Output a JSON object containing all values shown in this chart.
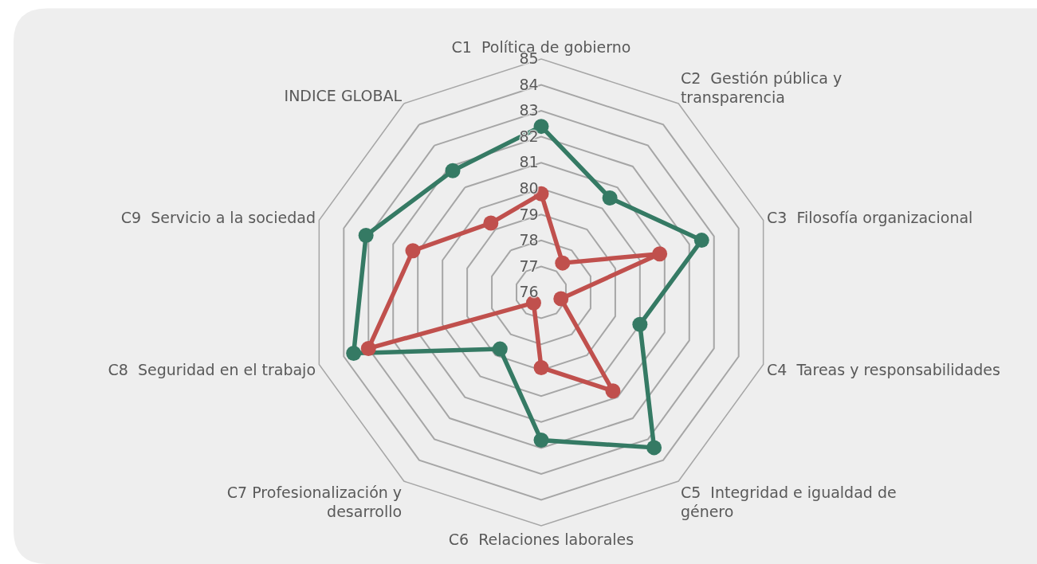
{
  "chart_data": {
    "type": "radar",
    "categories": [
      "C1  Política de gobierno",
      "C2  Gestión pública y transparencia",
      "C3  Filosofía organizacional",
      "C4  Tareas y responsabilidades",
      "C5  Integridad e igualdad de género",
      "C6  Relaciones laborales",
      "C7 Profesionalización y desarrollo",
      "C8  Seguridad en el trabajo",
      "C9  Servicio a la sociedad",
      "INDICE GLOBAL"
    ],
    "ylim": [
      76,
      85
    ],
    "yticks": [
      76,
      77,
      78,
      79,
      80,
      81,
      82,
      83,
      84,
      85
    ],
    "grid": true,
    "marker": "circle",
    "line_style": "solid",
    "series": [
      {
        "color": "#357a64",
        "values": [
          82.4,
          80.5,
          82.5,
          80.0,
          83.4,
          81.7,
          78.7,
          83.6,
          83.1,
          81.8
        ]
      },
      {
        "color": "#c0504d",
        "values": [
          79.8,
          77.4,
          80.8,
          76.8,
          80.7,
          78.9,
          76.5,
          83.0,
          81.2,
          79.3
        ]
      }
    ]
  }
}
